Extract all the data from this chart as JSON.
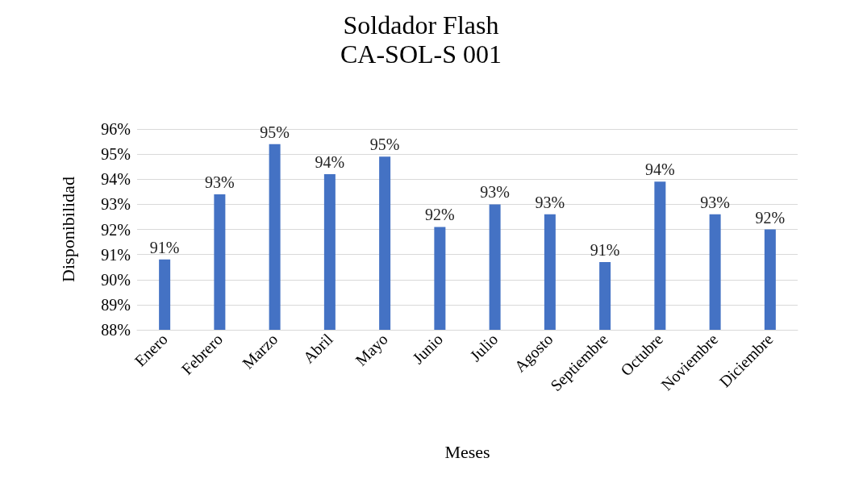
{
  "chart_data": {
    "type": "bar",
    "title": "Soldador Flash",
    "subtitle": "CA-SOL-S 001",
    "xlabel": "Meses",
    "ylabel": "Disponibilidad",
    "categories": [
      "Enero",
      "Febrero",
      "Marzo",
      "Abril",
      "Mayo",
      "Junio",
      "Julio",
      "Agosto",
      "Septiembre",
      "Octubre",
      "Noviembre",
      "Diciembre"
    ],
    "values": [
      90.8,
      93.4,
      95.4,
      94.2,
      94.9,
      92.1,
      93.0,
      92.6,
      90.7,
      93.9,
      92.6,
      92.0
    ],
    "value_labels": [
      "91%",
      "93%",
      "95%",
      "94%",
      "95%",
      "92%",
      "93%",
      "93%",
      "91%",
      "94%",
      "93%",
      "92%"
    ],
    "color": "#4472c4",
    "ylim": [
      88,
      96
    ],
    "yticks": [
      {
        "value": 88,
        "label": "88%"
      },
      {
        "value": 89,
        "label": "89%"
      },
      {
        "value": 90,
        "label": "90%"
      },
      {
        "value": 91,
        "label": "91%"
      },
      {
        "value": 92,
        "label": "92%"
      },
      {
        "value": 93,
        "label": "93%"
      },
      {
        "value": 94,
        "label": "94%"
      },
      {
        "value": 95,
        "label": "95%"
      },
      {
        "value": 96,
        "label": "96%"
      }
    ],
    "grid": "y"
  }
}
